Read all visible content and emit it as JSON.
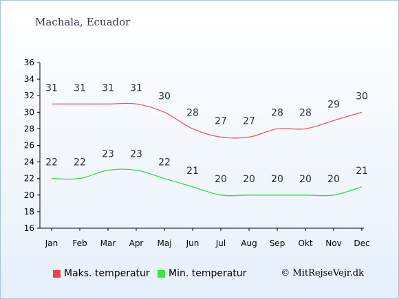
{
  "page": {
    "title": "Machala, Ecuador",
    "copyright": "© MitRejseVejr.dk"
  },
  "legend": {
    "max_label": "Maks. temperatur",
    "min_label": "Min. temperatur"
  },
  "colors": {
    "max": "#e85c5c",
    "min": "#33dd33",
    "max_swatch": "#ee4444",
    "min_swatch": "#33ee33",
    "value_text": "#1f2d47"
  },
  "chart_data": {
    "type": "line",
    "categories": [
      "Jan",
      "Feb",
      "Mar",
      "Apr",
      "Maj",
      "Jun",
      "Jul",
      "Aug",
      "Sep",
      "Okt",
      "Nov",
      "Dec"
    ],
    "series": [
      {
        "name": "Maks. temperatur",
        "values": [
          31,
          31,
          31,
          31,
          30,
          28,
          27,
          27,
          28,
          28,
          29,
          30
        ]
      },
      {
        "name": "Min. temperatur",
        "values": [
          22,
          22,
          23,
          23,
          22,
          21,
          20,
          20,
          20,
          20,
          20,
          21
        ]
      }
    ],
    "yticks": [
      16,
      18,
      20,
      22,
      24,
      26,
      28,
      30,
      32,
      34,
      36
    ],
    "ylim": [
      16,
      36
    ],
    "grid": false,
    "legend_position": "bottom-left"
  }
}
